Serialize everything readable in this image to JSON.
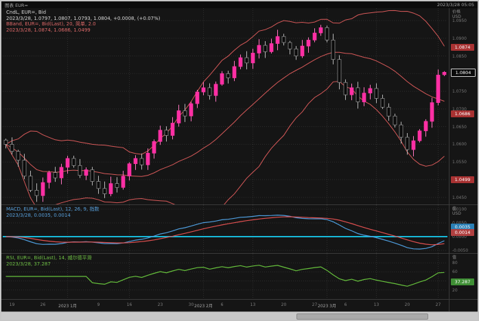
{
  "titlebar": {
    "left": "图表 EUR=",
    "right": "2023/3/28 05:05"
  },
  "main_panel": {
    "legend_line1": "CndL, EUR=, Bid",
    "legend_line2": "2023/3/28, 1.0797, 1.0807, 1.0793, 1.0804, +0.0008, (+0.07%)",
    "legend_line3": "BBand, EUR=, Bid(Last), 20, 简单, 2.0",
    "legend_line4": "2023/3/28, 1.0874, 1.0686, 1.0499",
    "axis_title_line1": "价格",
    "axis_title_line2": "USD",
    "badges": [
      {
        "label": "1.0874",
        "value": 1.0874,
        "style": "band"
      },
      {
        "label": "1.0804",
        "value": 1.0804,
        "style": "last"
      },
      {
        "label": "1.0686",
        "value": 1.0686,
        "style": "band"
      },
      {
        "label": "1.0499",
        "value": 1.0499,
        "style": "band"
      }
    ],
    "y_ticks": [
      1.095,
      1.09,
      1.085,
      1.08,
      1.075,
      1.07,
      1.065,
      1.06,
      1.055,
      1.05,
      1.045
    ]
  },
  "macd_panel": {
    "legend_line1": "MACD, EUR=, Bid(Last), 12, 26, 9, 指数",
    "legend_line2": "2023/3/28, 0.0035, 0.0014",
    "axis_title_line1": "值",
    "axis_title_line2": "USD",
    "badges": [
      {
        "label": "0.0035",
        "value": 0.0035,
        "style": "macd"
      },
      {
        "label": "0.0014",
        "value": 0.0014,
        "style": "signal"
      }
    ],
    "y_ticks": [
      0.01,
      0.005,
      0,
      -0.005
    ]
  },
  "rsi_panel": {
    "legend_line1": "RSI, EUR=, Bid(Last), 14, 威尔德平滑",
    "legend_line2": "2023/3/28, 37.287",
    "axis_title_line1": "值",
    "badges": [
      {
        "label": "37.287",
        "value": 37.287,
        "style": "rsi"
      }
    ],
    "y_ticks": [
      80,
      60,
      40,
      20
    ]
  },
  "x_axis": {
    "labels": [
      {
        "text": "19",
        "day": 1
      },
      {
        "text": "26",
        "day": 6
      },
      {
        "text": "2023 1月",
        "day": 10
      },
      {
        "text": "9",
        "day": 15
      },
      {
        "text": "16",
        "day": 20
      },
      {
        "text": "23",
        "day": 25
      },
      {
        "text": "30",
        "day": 30
      },
      {
        "text": "2023 2月",
        "day": 32
      },
      {
        "text": "6",
        "day": 35
      },
      {
        "text": "13",
        "day": 40
      },
      {
        "text": "20",
        "day": 45
      },
      {
        "text": "27",
        "day": 50
      },
      {
        "text": "2023 3月",
        "day": 52
      },
      {
        "text": "6",
        "day": 55
      },
      {
        "text": "13",
        "day": 60
      },
      {
        "text": "20",
        "day": 65
      },
      {
        "text": "27",
        "day": 70
      }
    ]
  },
  "palette": {
    "up": "#ff2fa4",
    "up_wick": "#ff74c0",
    "down": "#0a0a0a",
    "down_stroke": "#9a9a9a",
    "down_wick": "#b5b5b5",
    "band": "#e25d5d",
    "macd": "#4f9fe0",
    "signal": "#e05050",
    "zero": "#17b8d8",
    "rsi": "#66c13c"
  },
  "chart_data": {
    "type": "candlestick",
    "symbol": "EUR=",
    "field": "Bid",
    "interval": "daily",
    "last_candle": {
      "date": "2023/3/28",
      "open": 1.0797,
      "high": 1.0807,
      "low": 1.0793,
      "close": 1.0804,
      "change": "+0.0008",
      "change_pct": "+0.07%"
    },
    "closes": [
      1.06,
      1.058,
      1.0555,
      1.051,
      1.047,
      1.0455,
      1.0492,
      1.052,
      1.0505,
      1.0535,
      1.056,
      1.054,
      1.0512,
      1.0528,
      1.0495,
      1.0475,
      1.046,
      1.0489,
      1.0478,
      1.051,
      1.0545,
      1.056,
      1.0542,
      1.0575,
      1.0608,
      1.064,
      1.0625,
      1.066,
      1.0695,
      1.068,
      1.0715,
      1.0748,
      1.076,
      1.0738,
      1.077,
      1.08,
      1.0788,
      1.082,
      1.0845,
      1.083,
      1.0858,
      1.088,
      1.0862,
      1.0885,
      1.0905,
      1.0888,
      1.087,
      1.085,
      1.0878,
      1.0895,
      1.0915,
      1.093,
      1.0895,
      1.084,
      1.0775,
      1.074,
      1.076,
      1.072,
      1.0745,
      1.0758,
      1.073,
      1.0705,
      1.068,
      1.0655,
      1.062,
      1.0585,
      1.061,
      1.0638,
      1.0665,
      1.0718,
      1.0796,
      1.0804
    ],
    "ylim": [
      1.043,
      1.0985
    ],
    "indicators": {
      "bollinger": {
        "period": 20,
        "ma_type": "简单",
        "stdev": 2.0,
        "last_upper": 1.0874,
        "last_middle": 1.0686,
        "last_lower": 1.0499
      },
      "macd": {
        "fast": 12,
        "slow": 26,
        "signal_period": 9,
        "ma_type": "指数",
        "last_macd": 0.0035,
        "last_signal": 0.0014,
        "ylim": [
          -0.006,
          0.0115
        ]
      },
      "rsi": {
        "period": 14,
        "smoothing": "威尔德平滑",
        "last": 37.287,
        "ylim": [
          0,
          100
        ]
      }
    },
    "grid_days": [
      10,
      20,
      32,
      40,
      52,
      60,
      70
    ]
  }
}
